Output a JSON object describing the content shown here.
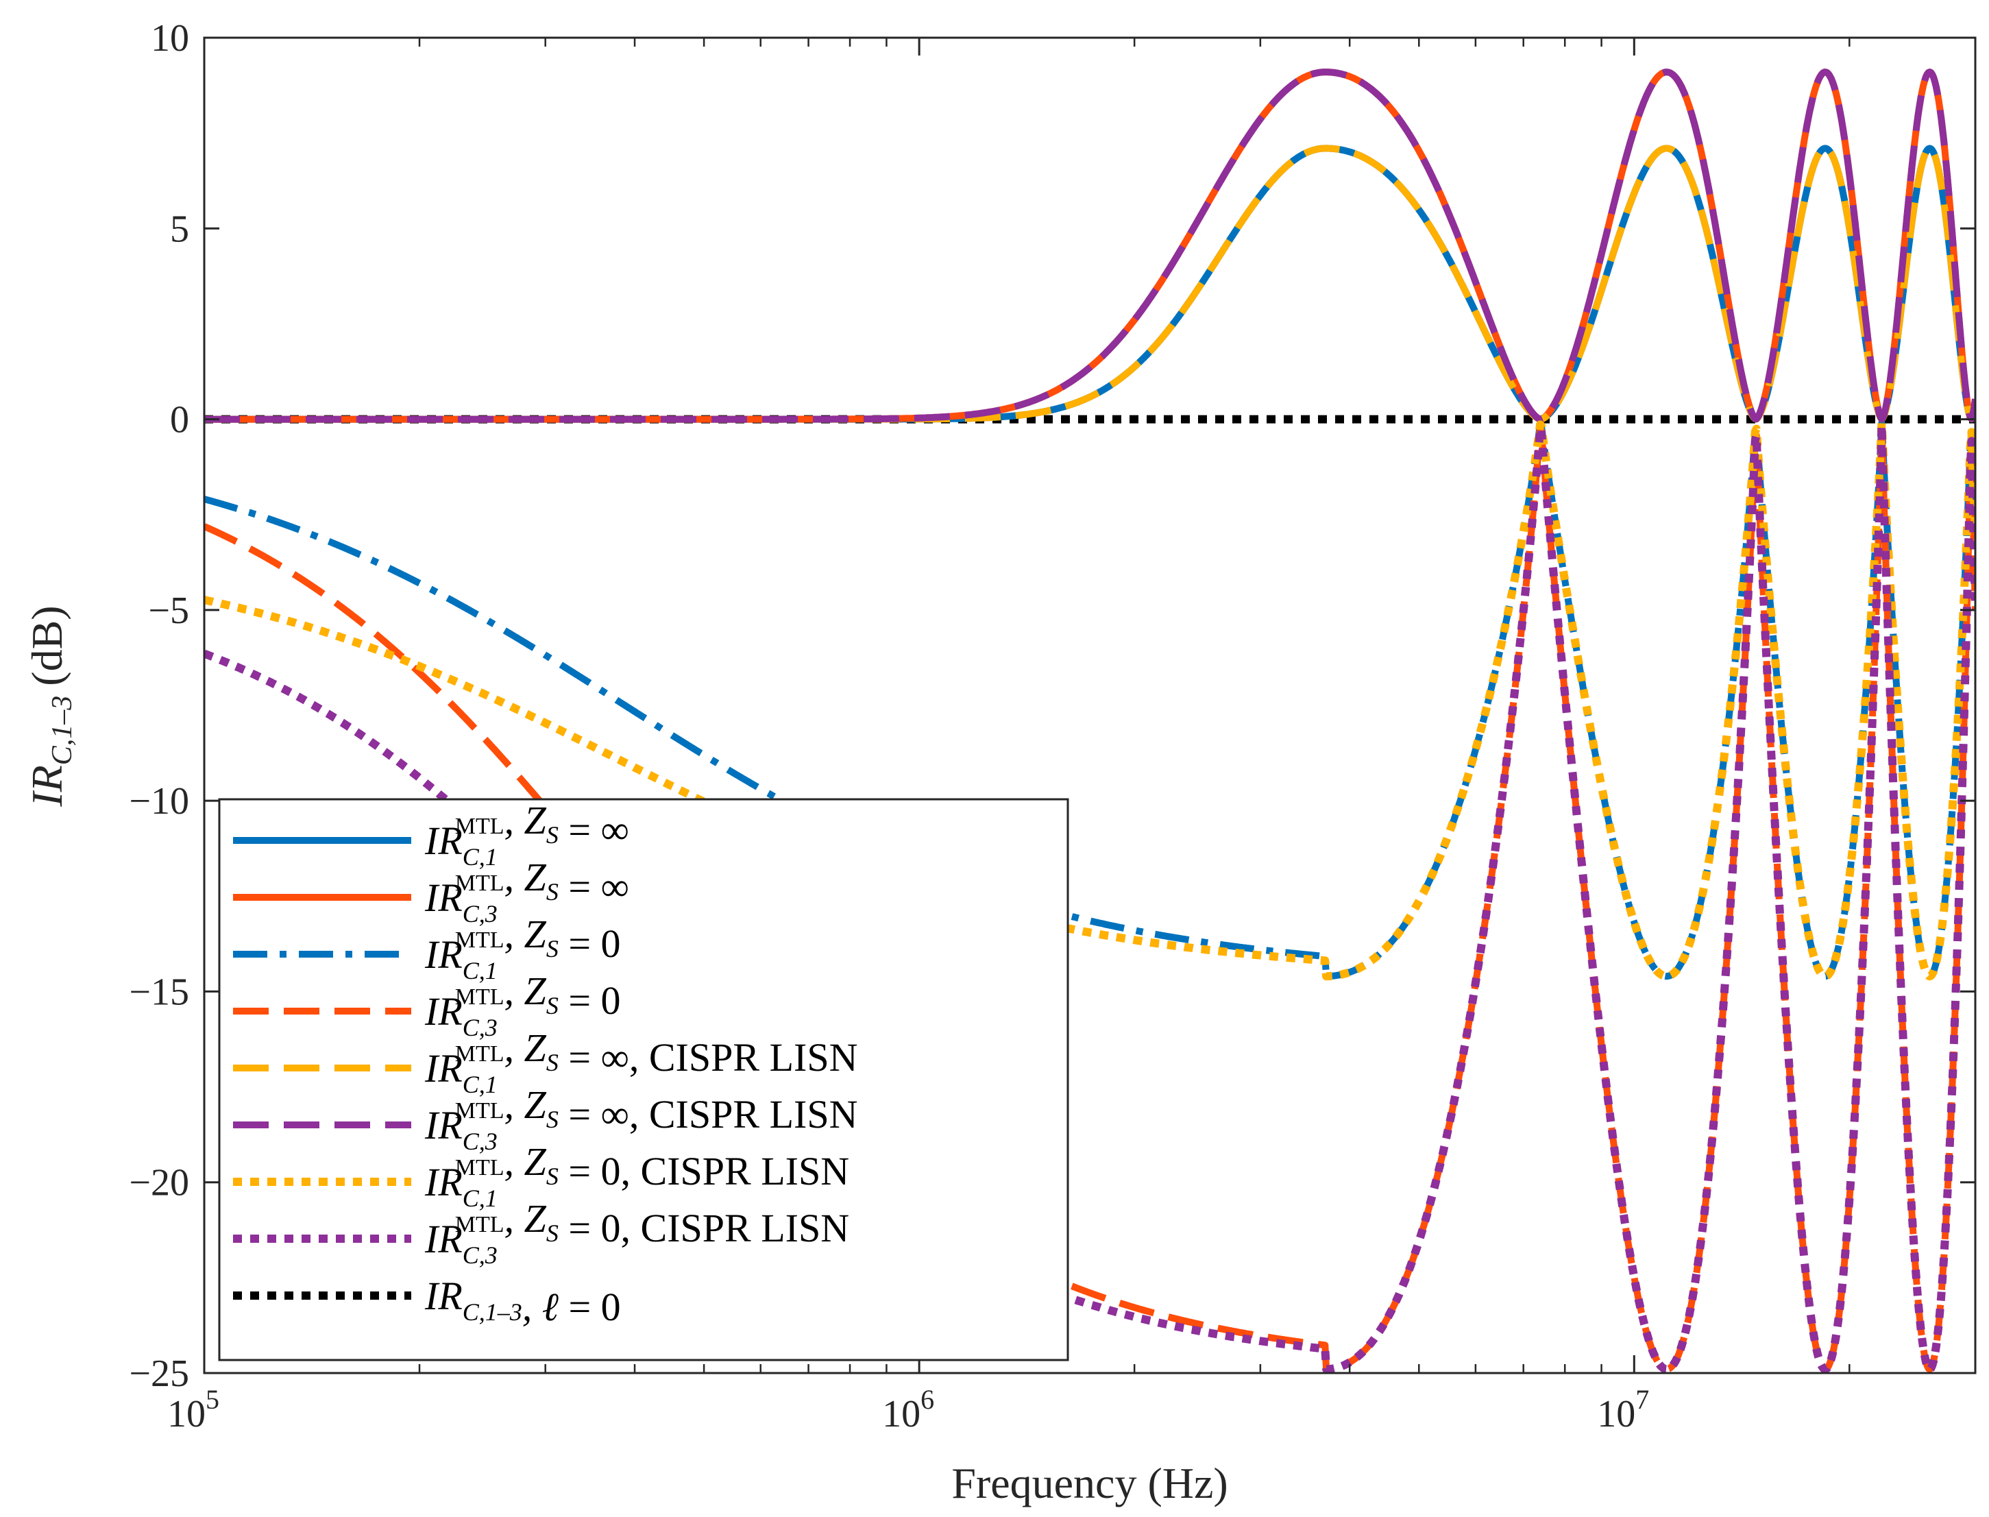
{
  "chart_data": {
    "type": "line",
    "title": "",
    "xlabel": "Frequency (Hz)",
    "ylabel": {
      "base": "IR",
      "sub": "C,1–3",
      "unit": "(dB)"
    },
    "xscale": "log",
    "xlim": [
      100000,
      30000000
    ],
    "ylim": [
      -25,
      10
    ],
    "x_ticks": [
      {
        "value": 100000,
        "base": "10",
        "exp": "5"
      },
      {
        "value": 1000000,
        "base": "10",
        "exp": "6"
      },
      {
        "value": 10000000,
        "base": "10",
        "exp": "7"
      }
    ],
    "y_ticks": [
      "10",
      "5",
      "0",
      "−5",
      "−10",
      "−15",
      "−20",
      "−25"
    ],
    "grid": false,
    "legend_position": "lower-left",
    "model": {
      "resonance_frequency_hz": 3700000,
      "zero_frequency_hz": 7400000,
      "peak_db": [
        9.1,
        7.1
      ],
      "dip_db": [
        -14.6,
        -24.9
      ],
      "lisn_low_freq_db": [
        -3.4,
        -4.1
      ],
      "zs0_low_freq_db": -0.4
    },
    "series": [
      {
        "name": "s1",
        "label_base": "IR",
        "label_sub": "C,1",
        "label_sup": "MTL",
        "label_rest": ",  Z",
        "label_rest_sub": "S",
        "label_tail": " = ∞",
        "label_extra": "",
        "color": "#0072BD",
        "style": "solid",
        "curve": "peak_low"
      },
      {
        "name": "s2",
        "label_base": "IR",
        "label_sub": "C,3",
        "label_sup": "MTL",
        "label_rest": ",  Z",
        "label_rest_sub": "S",
        "label_tail": " = ∞",
        "label_extra": "",
        "color": "#FF4D0A",
        "style": "solid",
        "curve": "peak_high"
      },
      {
        "name": "s3",
        "label_base": "IR",
        "label_sub": "C,1",
        "label_sup": "MTL",
        "label_rest": ",  Z",
        "label_rest_sub": "S",
        "label_tail": " = 0",
        "label_extra": "",
        "color": "#0072BD",
        "style": "dashdot",
        "curve": "dip_shallow"
      },
      {
        "name": "s4",
        "label_base": "IR",
        "label_sub": "C,3",
        "label_sup": "MTL",
        "label_rest": ",  Z",
        "label_rest_sub": "S",
        "label_tail": " = 0",
        "label_extra": "",
        "color": "#FF4D0A",
        "style": "dashed",
        "curve": "dip_deep"
      },
      {
        "name": "s5",
        "label_base": "IR",
        "label_sub": "C,1",
        "label_sup": "MTL",
        "label_rest": ",  Z",
        "label_rest_sub": "S",
        "label_tail": " = ∞, ",
        "label_extra": "CISPR LISN",
        "color": "#FFB000",
        "style": "dashed",
        "curve": "peak_low"
      },
      {
        "name": "s6",
        "label_base": "IR",
        "label_sub": "C,3",
        "label_sup": "MTL",
        "label_rest": ",  Z",
        "label_rest_sub": "S",
        "label_tail": " = ∞, ",
        "label_extra": "CISPR LISN",
        "color": "#8E2F9A",
        "style": "dashed",
        "curve": "peak_high"
      },
      {
        "name": "s7",
        "label_base": "IR",
        "label_sub": "C,1",
        "label_sup": "MTL",
        "label_rest": ",  Z",
        "label_rest_sub": "S",
        "label_tail": " = 0, ",
        "label_extra": "CISPR LISN",
        "color": "#FFB000",
        "style": "dotted",
        "curve": "lisn_shallow"
      },
      {
        "name": "s8",
        "label_base": "IR",
        "label_sub": "C,3",
        "label_sup": "MTL",
        "label_rest": ",  Z",
        "label_rest_sub": "S",
        "label_tail": " = 0, ",
        "label_extra": "CISPR LISN",
        "color": "#8E2F9A",
        "style": "dotted",
        "curve": "lisn_deep"
      },
      {
        "name": "s9",
        "label_base": "IR",
        "label_sub": "C,1–3",
        "label_sup": "",
        "label_rest": ",  ℓ",
        "label_rest_sub": "",
        "label_tail": " = 0",
        "label_extra": "",
        "color": "#000000",
        "style": "dotted",
        "curve": "flat"
      }
    ]
  }
}
